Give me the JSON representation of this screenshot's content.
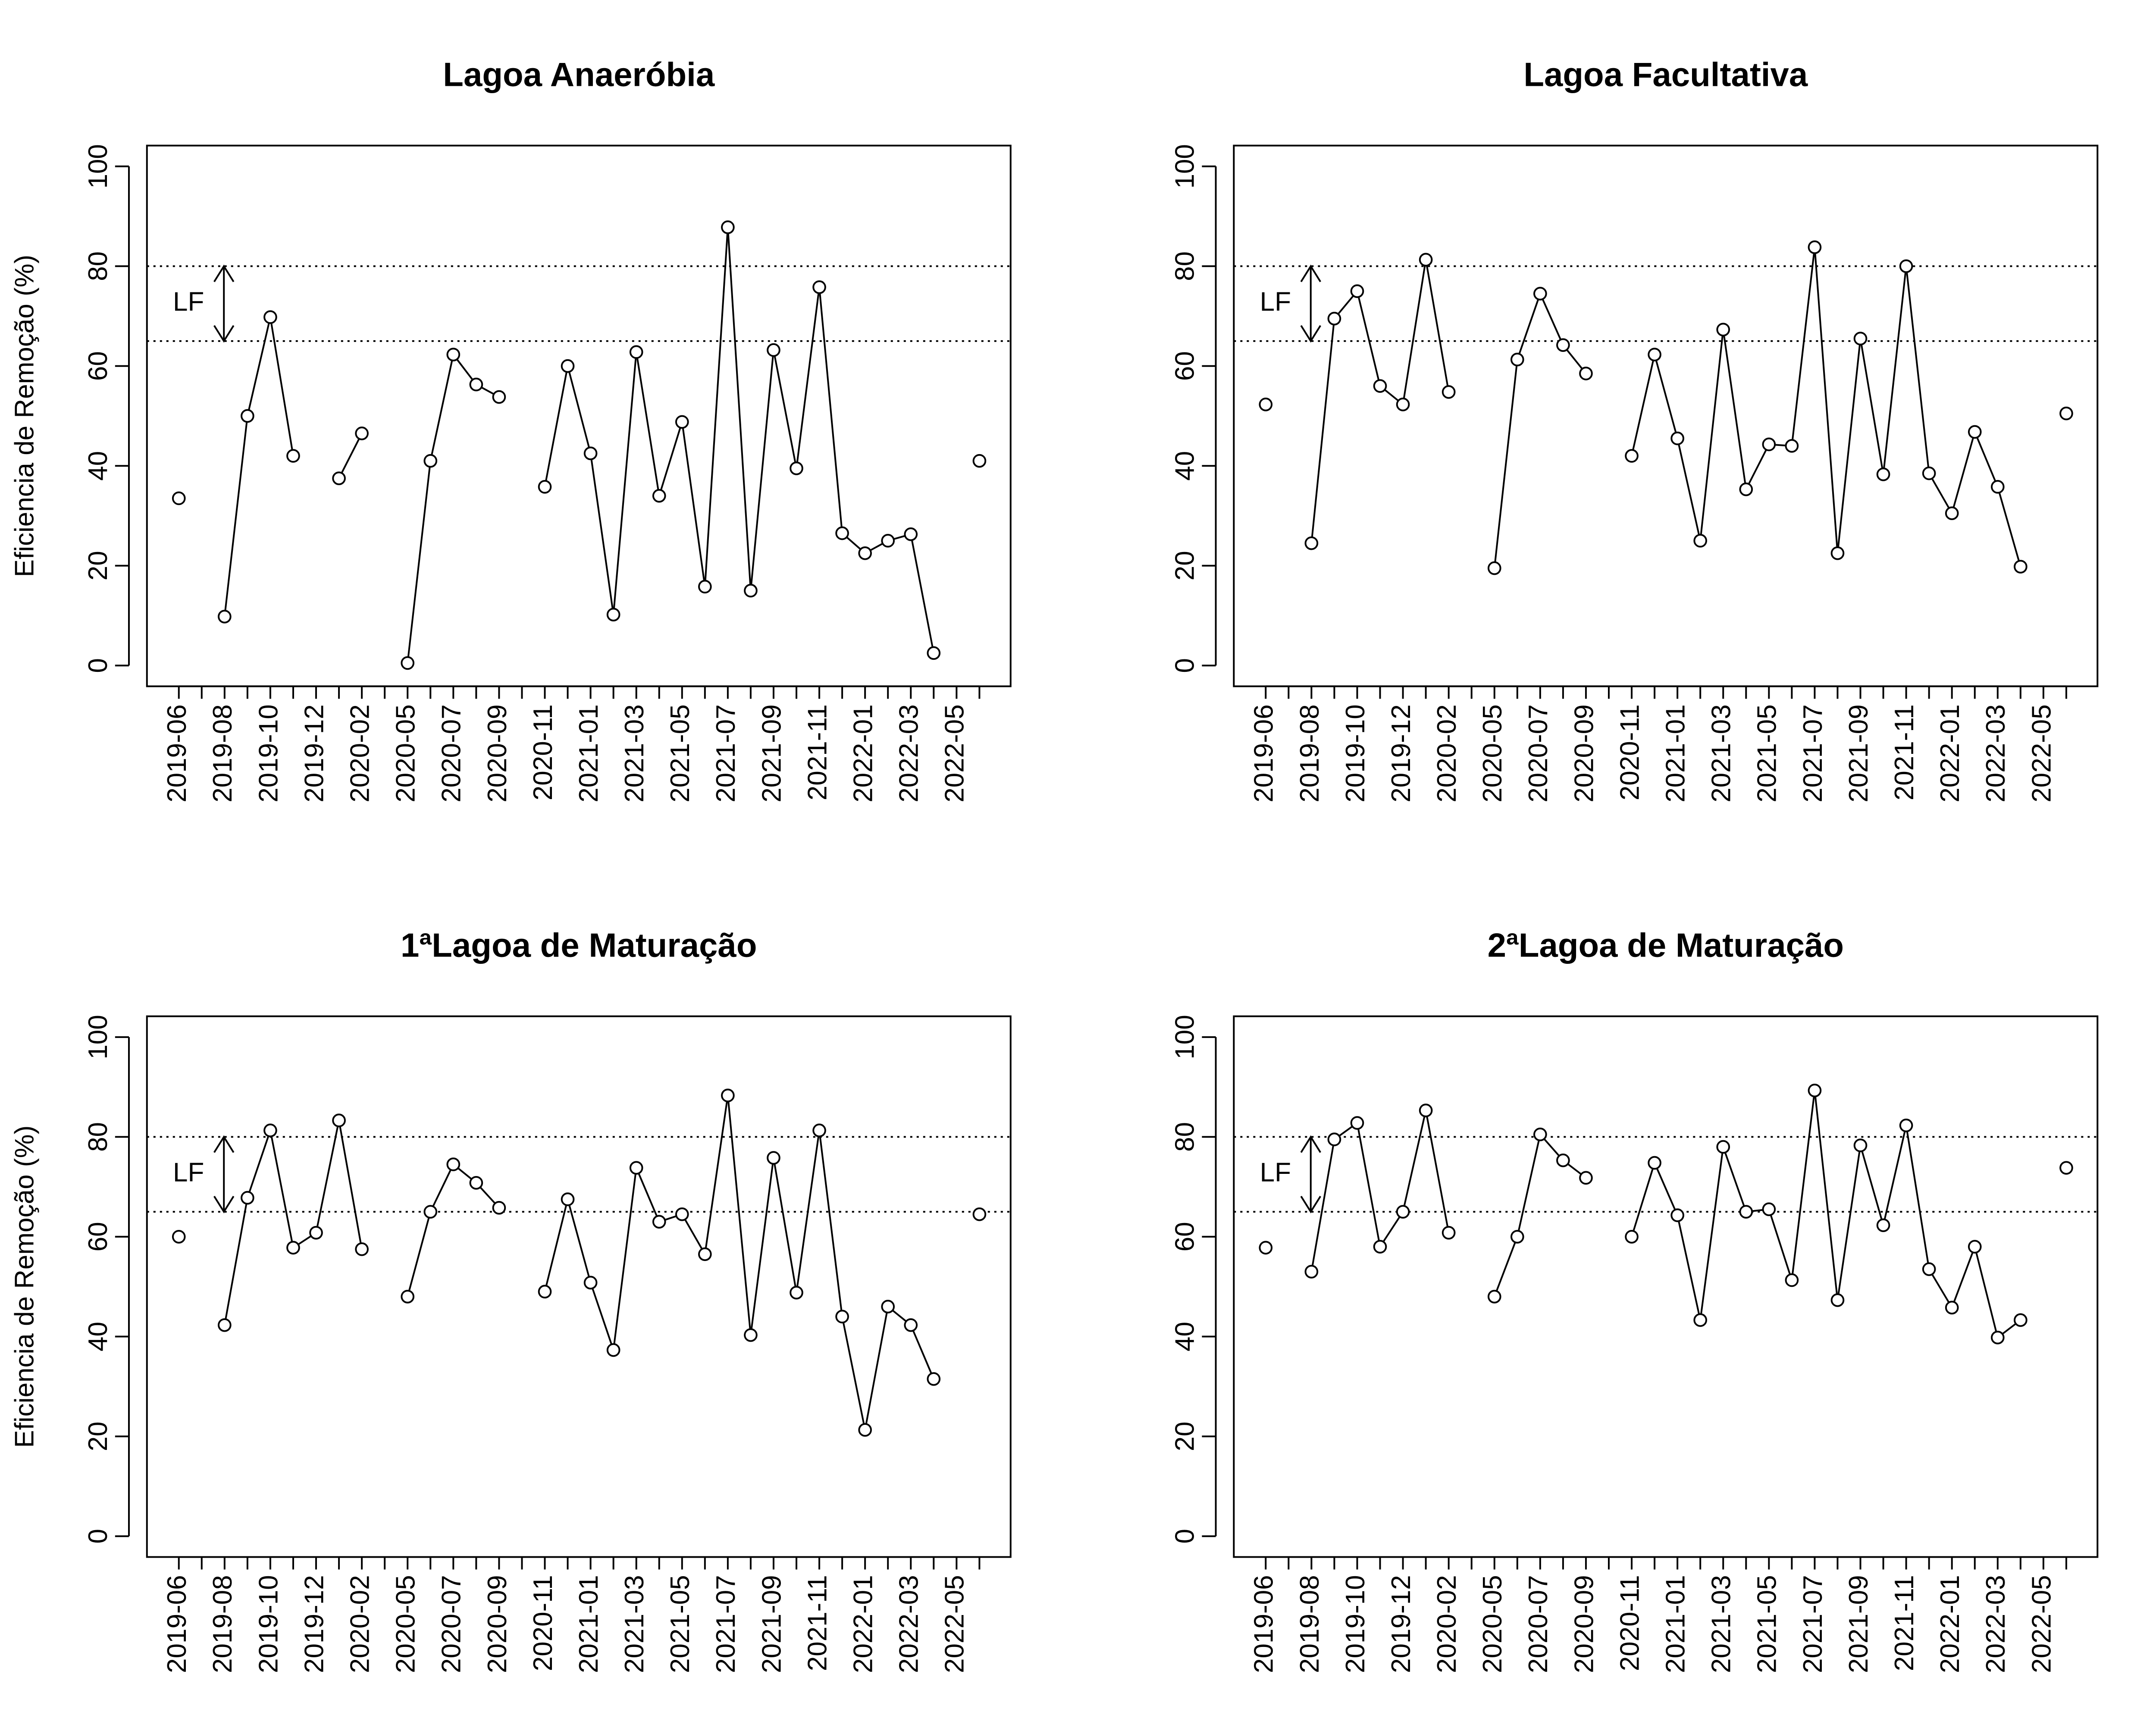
{
  "chart_data": [
    {
      "type": "line",
      "title": "Lagoa Anaeróbia",
      "ylabel": "Eficiencia de Remoção (%)",
      "ylim": [
        0,
        100
      ],
      "yticks": [
        "0",
        "20",
        "40",
        "60",
        "80",
        "100"
      ],
      "x_tick_labels": [
        "2019-06",
        "2019-08",
        "2019-10",
        "2019-12",
        "2020-02",
        "2020-05",
        "2020-07",
        "2020-09",
        "2020-11",
        "2021-01",
        "2021-03",
        "2021-05",
        "2021-07",
        "2021-09",
        "2021-11",
        "2022-01",
        "2022-03",
        "2022-05"
      ],
      "reference_lines": [
        80,
        65
      ],
      "annotation": "LF",
      "values": [
        33.5,
        null,
        9.8,
        50,
        69.8,
        42,
        null,
        37.5,
        46.5,
        null,
        0.5,
        41,
        62.3,
        56.3,
        53.8,
        null,
        35.8,
        60,
        42.5,
        10.2,
        62.8,
        34,
        48.8,
        15.8,
        87.8,
        15,
        63.2,
        39.5,
        75.8,
        26.5,
        22.5,
        25,
        26.3,
        2.5,
        null,
        41
      ]
    },
    {
      "type": "line",
      "title": "Lagoa Facultativa",
      "ylabel": "",
      "ylim": [
        0,
        100
      ],
      "yticks": [
        "0",
        "20",
        "40",
        "60",
        "80",
        "100"
      ],
      "x_tick_labels": [
        "2019-06",
        "2019-08",
        "2019-10",
        "2019-12",
        "2020-02",
        "2020-05",
        "2020-07",
        "2020-09",
        "2020-11",
        "2021-01",
        "2021-03",
        "2021-05",
        "2021-07",
        "2021-09",
        "2021-11",
        "2022-01",
        "2022-03",
        "2022-05"
      ],
      "reference_lines": [
        80,
        65
      ],
      "annotation": "LF",
      "values": [
        52.3,
        null,
        24.5,
        69.5,
        75,
        56,
        52.3,
        81.3,
        54.8,
        null,
        19.5,
        61.3,
        74.5,
        64.2,
        58.5,
        null,
        42,
        62.3,
        45.5,
        25,
        67.3,
        35.3,
        44.3,
        44,
        83.8,
        22.5,
        65.5,
        38.3,
        80,
        38.5,
        30.5,
        46.8,
        35.8,
        19.8,
        null,
        50.5
      ]
    },
    {
      "type": "line",
      "title": "1ªLagoa de Maturação",
      "ylabel": "Eficiencia de Remoção (%)",
      "ylim": [
        0,
        100
      ],
      "yticks": [
        "0",
        "20",
        "40",
        "60",
        "80",
        "100"
      ],
      "x_tick_labels": [
        "2019-06",
        "2019-08",
        "2019-10",
        "2019-12",
        "2020-02",
        "2020-05",
        "2020-07",
        "2020-09",
        "2020-11",
        "2021-01",
        "2021-03",
        "2021-05",
        "2021-07",
        "2021-09",
        "2021-11",
        "2022-01",
        "2022-03",
        "2022-05"
      ],
      "reference_lines": [
        80,
        65
      ],
      "annotation": "LF",
      "values": [
        60,
        null,
        42.3,
        67.8,
        81.3,
        57.8,
        60.8,
        83.3,
        57.5,
        null,
        48,
        65,
        74.5,
        70.8,
        65.8,
        null,
        49,
        67.5,
        50.8,
        37.3,
        73.8,
        63,
        64.5,
        56.5,
        88.3,
        40.3,
        75.8,
        48.8,
        81.3,
        44,
        21.3,
        46,
        42.3,
        31.5,
        null,
        64.5
      ]
    },
    {
      "type": "line",
      "title": "2ªLagoa de Maturação",
      "ylabel": "",
      "ylim": [
        0,
        100
      ],
      "yticks": [
        "0",
        "20",
        "40",
        "60",
        "80",
        "100"
      ],
      "x_tick_labels": [
        "2019-06",
        "2019-08",
        "2019-10",
        "2019-12",
        "2020-02",
        "2020-05",
        "2020-07",
        "2020-09",
        "2020-11",
        "2021-01",
        "2021-03",
        "2021-05",
        "2021-07",
        "2021-09",
        "2021-11",
        "2022-01",
        "2022-03",
        "2022-05"
      ],
      "reference_lines": [
        80,
        65
      ],
      "annotation": "LF",
      "values": [
        57.8,
        null,
        53,
        79.5,
        82.8,
        58,
        65,
        85.3,
        60.8,
        null,
        48,
        60,
        80.5,
        75.3,
        71.8,
        null,
        60,
        74.8,
        64.3,
        43.3,
        78,
        65,
        65.5,
        51.3,
        89.3,
        47.3,
        78.3,
        62.3,
        82.3,
        53.5,
        45.8,
        58,
        39.8,
        43.3,
        null,
        73.8
      ]
    }
  ]
}
